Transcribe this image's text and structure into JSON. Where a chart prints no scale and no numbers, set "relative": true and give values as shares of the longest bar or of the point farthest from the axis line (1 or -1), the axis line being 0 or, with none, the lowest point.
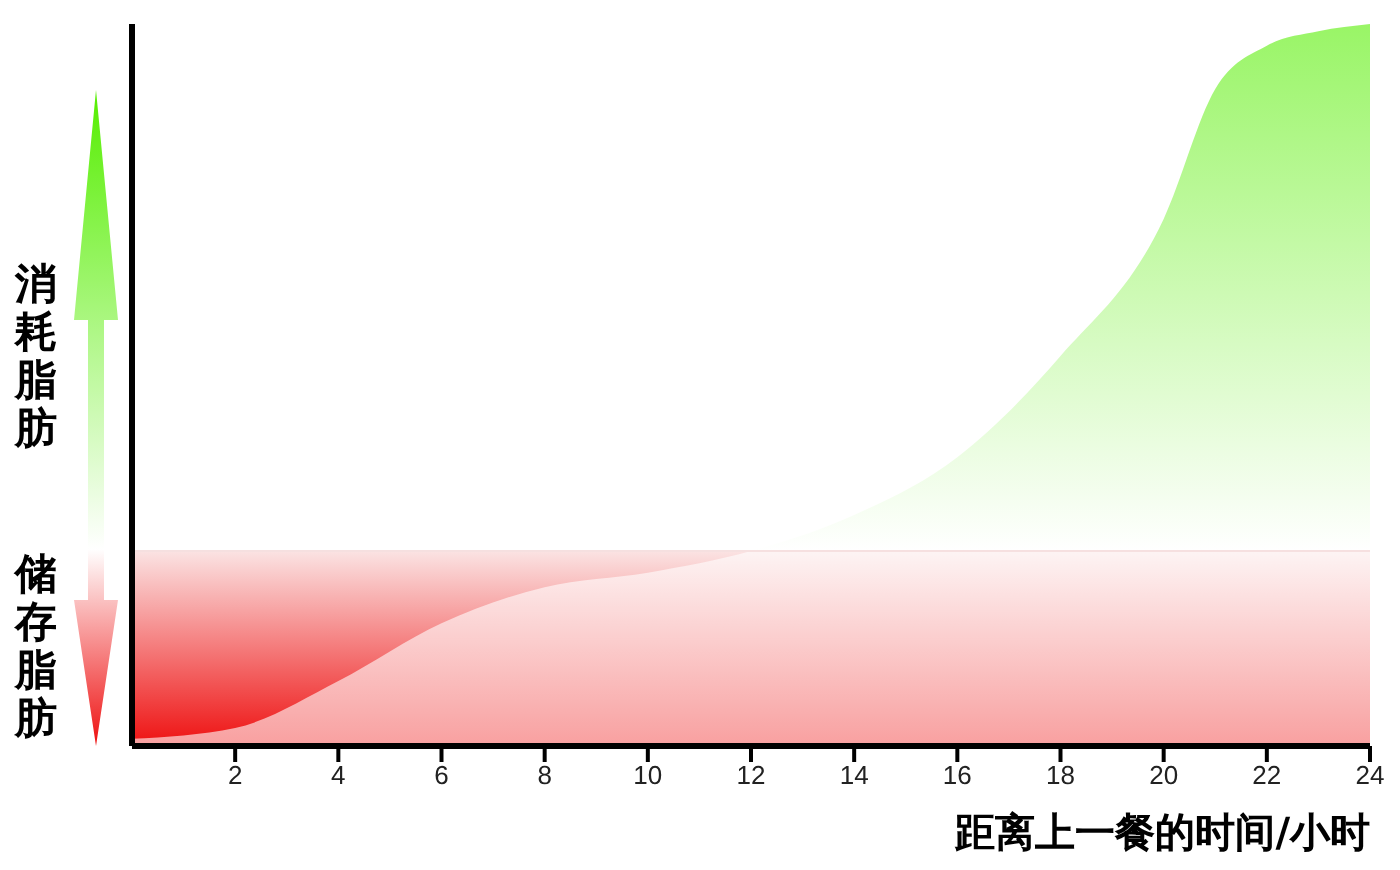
{
  "chart_data": {
    "type": "area",
    "relative": true,
    "xlabel": "距离上一餐的时间/小时",
    "annotations": [
      "消耗脂肪",
      "储存脂肪"
    ],
    "x": [
      0,
      2,
      4,
      6,
      8,
      10,
      12,
      14,
      16,
      18,
      20,
      21,
      22,
      23,
      24
    ],
    "series": [
      {
        "color": "#55ee00",
        "values": [
          0.01,
          0.025,
          0.09,
          0.17,
          0.22,
          0.24,
          0.27,
          0.32,
          0.4,
          0.54,
          0.73,
          0.91,
          0.97,
          0.99,
          1
        ]
      }
    ],
    "xlim": [
      0,
      24
    ],
    "xticks": [
      2,
      4,
      6,
      8,
      10,
      12,
      14,
      16,
      18,
      20,
      22,
      24
    ],
    "ref_lines": [
      {
        "axis": "y",
        "value": 0.27,
        "color": "#f6e0e0"
      }
    ],
    "bands": [
      {
        "axis": "y",
        "from": 0,
        "to": 0.27,
        "color": "#ee1111"
      }
    ]
  }
}
